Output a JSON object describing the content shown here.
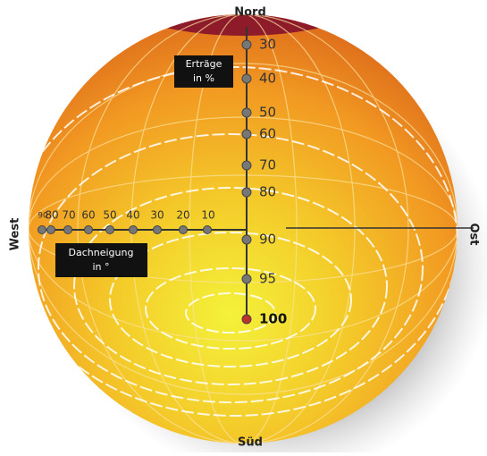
{
  "compass": {
    "north": "Nord",
    "east": "Ost",
    "south": "Süd",
    "west": "West"
  },
  "yield_scale": {
    "title": [
      "Erträge",
      "in %"
    ],
    "labels": [
      "30",
      "40",
      "50",
      "60",
      "70",
      "80",
      "90",
      "95",
      "100"
    ]
  },
  "tilt_scale": {
    "title": [
      "Dachneigung",
      "in °"
    ],
    "labels": [
      "90",
      "80",
      "70",
      "60",
      "50",
      "40",
      "30",
      "20",
      "10"
    ]
  }
}
